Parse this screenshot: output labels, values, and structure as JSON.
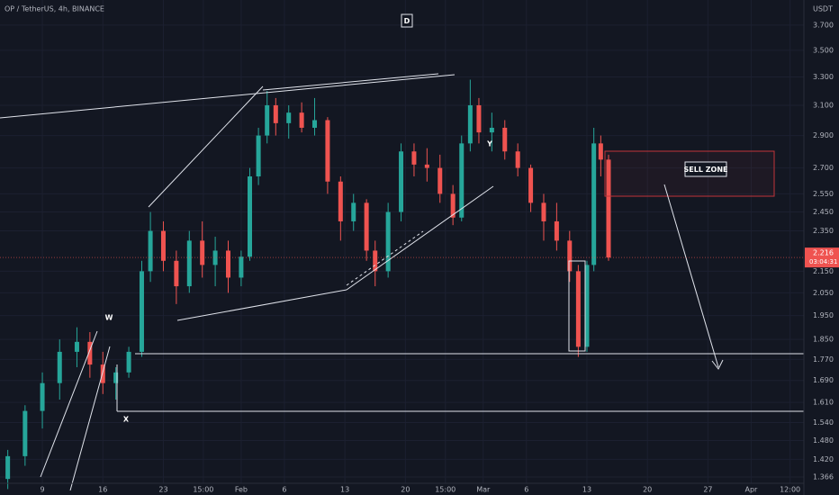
{
  "chart_data": {
    "type": "candlestick",
    "legend_text": "OP / TetherUS, 4h, BINANCE",
    "unit": "USDT",
    "interval_badge": "D",
    "annotations": [
      "W",
      "X",
      "Y",
      "SELL ZONE"
    ],
    "last_price": 2.216,
    "countdown": "03:04:31",
    "up_color": "#26a69a",
    "down_color": "#ef5350",
    "log_scale": true,
    "grid": true,
    "ylim": [
      1.347,
      3.91
    ],
    "xlim": [
      4.1,
      97.1
    ],
    "yticks": [
      {
        "value": 3.7,
        "label": "3.700"
      },
      {
        "value": 3.5,
        "label": "3.500"
      },
      {
        "value": 3.3,
        "label": "3.300"
      },
      {
        "value": 3.1,
        "label": "3.100"
      },
      {
        "value": 2.9,
        "label": "2.900"
      },
      {
        "value": 2.7,
        "label": "2.700"
      },
      {
        "value": 2.55,
        "label": "2.550"
      },
      {
        "value": 2.45,
        "label": "2.450"
      },
      {
        "value": 2.35,
        "label": "2.350"
      },
      {
        "value": 2.15,
        "label": "2.150"
      },
      {
        "value": 2.05,
        "label": "2.050"
      },
      {
        "value": 1.95,
        "label": "1.950"
      },
      {
        "value": 1.85,
        "label": "1.850"
      },
      {
        "value": 1.77,
        "label": "1.770"
      },
      {
        "value": 1.69,
        "label": "1.690"
      },
      {
        "value": 1.61,
        "label": "1.610"
      },
      {
        "value": 1.54,
        "label": "1.540"
      },
      {
        "value": 1.48,
        "label": "1.480"
      },
      {
        "value": 1.42,
        "label": "1.420"
      },
      {
        "value": 1.366,
        "label": "1.366"
      }
    ],
    "xticks": [
      9,
      16,
      23,
      {
        "value": 27.625,
        "label": "15:00"
      },
      {
        "value": 32,
        "label": "Feb"
      },
      {
        "value": 37,
        "label": "6"
      },
      {
        "value": 44,
        "label": "13"
      },
      {
        "value": 51,
        "label": "20"
      },
      {
        "value": 55.625,
        "label": "15:00"
      },
      {
        "value": 60,
        "label": "Mar"
      },
      {
        "value": 65,
        "label": "6"
      },
      {
        "value": 72,
        "label": "13"
      },
      {
        "value": 79,
        "label": "20"
      },
      {
        "value": 86,
        "label": "27"
      },
      {
        "value": 91,
        "label": "Apr"
      },
      {
        "value": 95.5,
        "label": "12:00"
      }
    ],
    "candles": {
      "x": [
        5,
        7,
        9,
        11,
        13,
        14.5,
        16,
        17.5,
        19,
        20.5,
        21.5,
        23,
        24.5,
        26,
        27.5,
        29,
        30.5,
        32,
        33,
        34,
        35,
        36,
        37.5,
        39,
        40.5,
        42,
        43.5,
        45,
        46.5,
        47.5,
        49,
        50.5,
        52,
        53.5,
        55,
        56.5,
        57.5,
        58.5,
        59.5,
        61,
        62.5,
        64,
        65.5,
        67,
        68.5,
        70,
        71,
        72,
        72.8,
        73.6,
        74.5
      ],
      "open": [
        1.36,
        1.43,
        1.58,
        1.68,
        1.8,
        1.84,
        1.75,
        1.68,
        1.72,
        1.8,
        2.15,
        2.35,
        2.2,
        2.08,
        2.3,
        2.18,
        2.25,
        2.12,
        2.22,
        2.65,
        2.9,
        3.1,
        2.98,
        3.05,
        2.95,
        3.0,
        2.62,
        2.4,
        2.5,
        2.25,
        2.15,
        2.45,
        2.8,
        2.72,
        2.7,
        2.55,
        2.42,
        2.85,
        3.1,
        2.92,
        2.95,
        2.8,
        2.7,
        2.5,
        2.4,
        2.3,
        2.15,
        1.82,
        2.18,
        2.85,
        2.75
      ],
      "high": [
        1.45,
        1.6,
        1.72,
        1.85,
        1.9,
        1.88,
        1.8,
        1.74,
        1.82,
        2.2,
        2.45,
        2.4,
        2.25,
        2.35,
        2.4,
        2.32,
        2.3,
        2.25,
        2.7,
        2.95,
        3.2,
        3.15,
        3.1,
        3.12,
        3.15,
        3.02,
        2.65,
        2.55,
        2.52,
        2.3,
        2.5,
        2.85,
        2.85,
        2.82,
        2.78,
        2.6,
        2.9,
        3.28,
        3.15,
        3.05,
        3.0,
        2.85,
        2.72,
        2.55,
        2.5,
        2.35,
        2.18,
        2.2,
        2.95,
        2.9,
        2.78
      ],
      "low": [
        1.33,
        1.4,
        1.52,
        1.62,
        1.74,
        1.7,
        1.64,
        1.62,
        1.7,
        1.78,
        2.1,
        2.15,
        2.0,
        2.05,
        2.12,
        2.08,
        2.05,
        2.08,
        2.2,
        2.6,
        2.85,
        2.9,
        2.88,
        2.92,
        2.9,
        2.55,
        2.3,
        2.35,
        2.2,
        2.08,
        2.12,
        2.4,
        2.65,
        2.62,
        2.5,
        2.38,
        2.4,
        2.8,
        2.85,
        2.8,
        2.75,
        2.65,
        2.45,
        2.3,
        2.25,
        2.1,
        1.78,
        1.8,
        2.15,
        2.65,
        2.2
      ],
      "close": [
        1.43,
        1.58,
        1.68,
        1.8,
        1.84,
        1.75,
        1.68,
        1.72,
        1.8,
        2.15,
        2.35,
        2.2,
        2.08,
        2.3,
        2.18,
        2.25,
        2.12,
        2.22,
        2.65,
        2.9,
        3.1,
        2.98,
        3.05,
        2.95,
        3.0,
        2.62,
        2.4,
        2.5,
        2.25,
        2.15,
        2.45,
        2.8,
        2.72,
        2.7,
        2.55,
        2.42,
        2.85,
        3.1,
        2.92,
        2.95,
        2.8,
        2.7,
        2.5,
        2.4,
        2.3,
        2.15,
        1.82,
        2.18,
        2.85,
        2.75,
        2.216
      ]
    }
  }
}
